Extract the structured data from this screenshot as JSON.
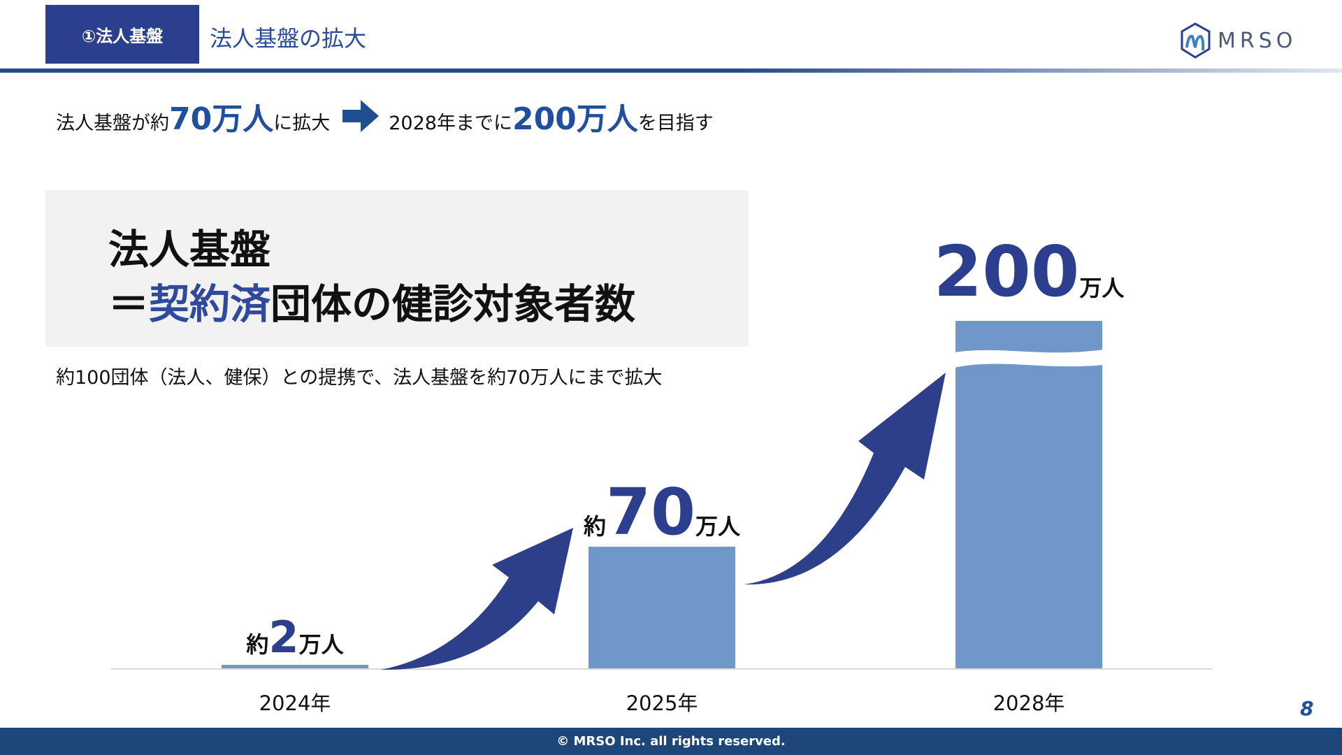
{
  "header": {
    "tag": "①法人基盤",
    "title": "法人基盤の拡大",
    "logo": "MRSO"
  },
  "headline": {
    "before": [
      {
        "text": "法人基盤が約"
      },
      {
        "text": "70万人",
        "emphasis": true
      },
      {
        "text": "に拡大"
      }
    ],
    "after": [
      {
        "text": "2028年までに"
      },
      {
        "text": "200万人",
        "emphasis": true
      },
      {
        "text": "を目指す"
      }
    ]
  },
  "definition": {
    "line1": "法人基盤",
    "line2": [
      {
        "text": "＝"
      },
      {
        "text": "契約済",
        "emphasis": true
      },
      {
        "text": "団体の健診対象者数"
      }
    ]
  },
  "note": "約100団体（法人、健保）との提携で、法人基盤を約70万人にまで拡大",
  "chart_data": {
    "type": "bar",
    "categories": [
      "2024年",
      "2025年",
      "2028年"
    ],
    "values": [
      2,
      70,
      200
    ],
    "value_prefixes": [
      "約",
      "約",
      null
    ],
    "value_unit": "万人",
    "color": "#6f97c8",
    "break_last": true
  },
  "page_number": 8,
  "footer": "© MRSO Inc. all rights reserved."
}
